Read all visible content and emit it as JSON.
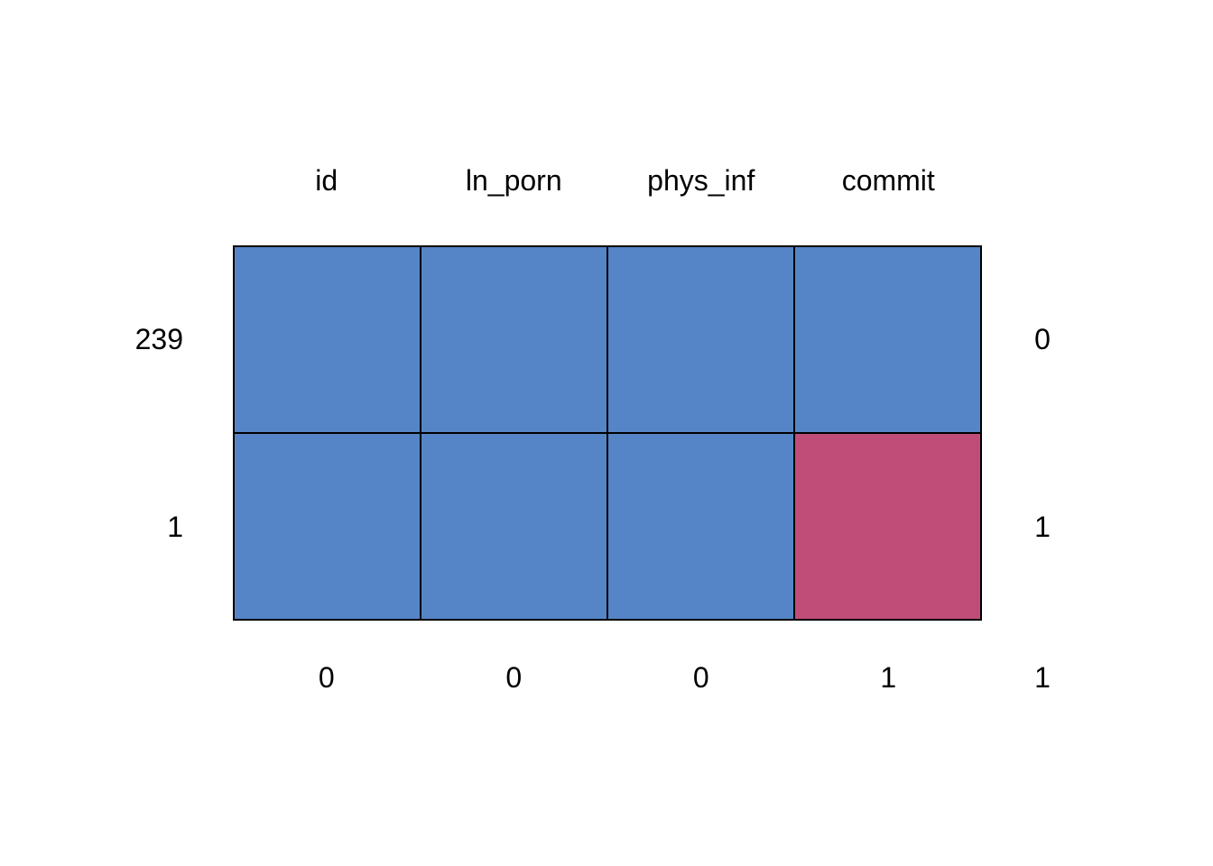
{
  "figure": {
    "background": "#ffffff"
  },
  "chart_data": {
    "type": "heatmap",
    "subtype": "missing-data-pattern",
    "title": "",
    "columns": [
      "id",
      "ln_porn",
      "phys_inf",
      "commit"
    ],
    "rows": [
      {
        "left_label": "239",
        "right_label": "0",
        "pattern": [
          1,
          1,
          1,
          1
        ]
      },
      {
        "left_label": "1",
        "right_label": "1",
        "pattern": [
          1,
          1,
          1,
          0
        ]
      }
    ],
    "column_missing_counts": [
      "0",
      "0",
      "0",
      "1"
    ],
    "total_missing_count": "1",
    "legend": {
      "observed_value": 1,
      "missing_value": 0,
      "observed_color": "#5585C6",
      "missing_color": "#C04D78",
      "border_color": "#000000",
      "text_color": "#000000"
    },
    "layout_hints": {
      "grid_on": false,
      "axes_shown": false,
      "row_labels_left": "pattern frequency counts",
      "row_labels_right": "number of missing variables in pattern",
      "bottom_labels": "missing count per column plus total"
    }
  }
}
